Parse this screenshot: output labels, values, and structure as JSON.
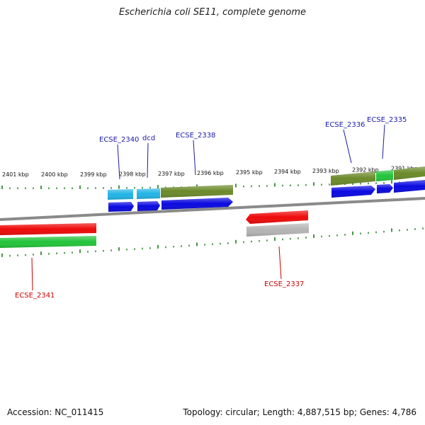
{
  "title": "Escherichia coli SE11, complete genome",
  "footer": {
    "accession": "Accession: NC_011415",
    "summary": "Topology: circular; Length: 4,887,515 bp; Genes: 4,786"
  },
  "colors": {
    "backbone": "#8a8a8a",
    "tick": "#1a7a1a",
    "label_plus": "#1a1aaa",
    "label_minus": "#cc0000",
    "cds_blue": "#0a0ae0",
    "gene_cyan": "#22b4e6",
    "gene_olive": "#6b8a2a",
    "gene_red": "#ee0a0a",
    "gene_green": "#22c43a",
    "gene_grey": "#b4b4b4"
  },
  "ticks": [
    {
      "label": "2401 kbp"
    },
    {
      "label": "2400 kbp"
    },
    {
      "label": "2399 kbp"
    },
    {
      "label": "2398 kbp"
    },
    {
      "label": "2397 kbp"
    },
    {
      "label": "2396 kbp"
    },
    {
      "label": "2395 kbp"
    },
    {
      "label": "2394 kbp"
    },
    {
      "label": "2393 kbp"
    },
    {
      "label": "2392 kbp"
    },
    {
      "label": "2391 kbp"
    }
  ],
  "gene_labels": [
    {
      "name": "ECSE_2340",
      "strand": "plus"
    },
    {
      "name": "dcd",
      "strand": "plus"
    },
    {
      "name": "ECSE_2338",
      "strand": "plus"
    },
    {
      "name": "ECSE_2336",
      "strand": "plus"
    },
    {
      "name": "ECSE_2335",
      "strand": "plus"
    },
    {
      "name": "ECSE_2341",
      "strand": "minus"
    },
    {
      "name": "ECSE_2337",
      "strand": "minus"
    }
  ]
}
